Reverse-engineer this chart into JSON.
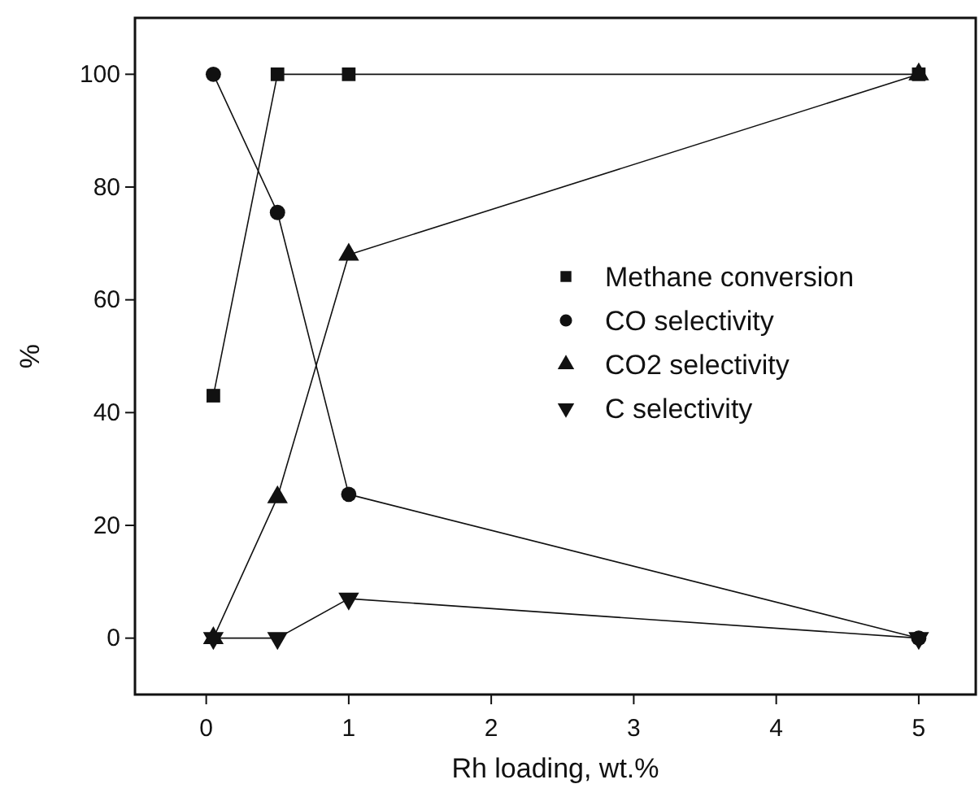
{
  "chart_data": {
    "type": "line",
    "xlabel": "Rh loading, wt.%",
    "ylabel": "%",
    "x": [
      0.05,
      0.5,
      1,
      5
    ],
    "xlim": [
      -0.5,
      5.4
    ],
    "xticks": [
      0,
      1,
      2,
      3,
      4,
      5
    ],
    "ylim": [
      -10,
      110
    ],
    "yticks": [
      0,
      20,
      40,
      60,
      80,
      100
    ],
    "grid": false,
    "legend": "right",
    "line_style": "solid",
    "series": [
      {
        "name": "Methane conversion",
        "color": "#111111",
        "marker": "square",
        "values": [
          43,
          100,
          100,
          100
        ]
      },
      {
        "name": "CO selectivity",
        "color": "#111111",
        "marker": "circle",
        "values": [
          100,
          75.5,
          25.5,
          0
        ]
      },
      {
        "name": "CO2 selectivity",
        "color": "#111111",
        "marker": "triangle",
        "values": [
          0,
          25,
          68,
          100
        ]
      },
      {
        "name": "C selectivity",
        "color": "#111111",
        "marker": "triangle-down",
        "values": [
          0,
          0,
          7,
          0
        ]
      }
    ]
  }
}
